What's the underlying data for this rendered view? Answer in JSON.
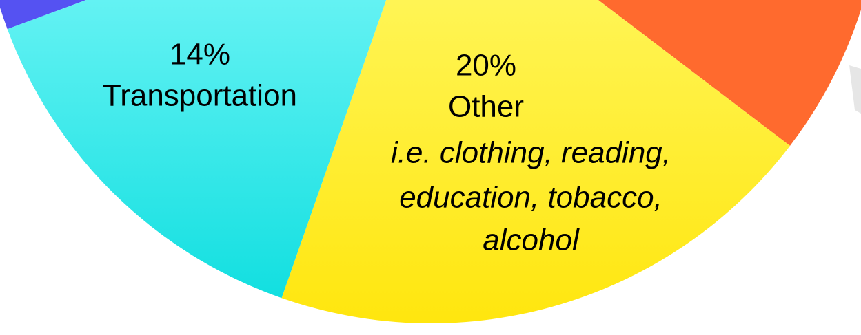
{
  "chart_data": {
    "type": "pie",
    "categories": [
      "Transportation",
      "Other"
    ],
    "values": [
      14,
      20
    ],
    "value_labels": [
      "14%",
      "20%"
    ],
    "colors": [
      "#40eaee",
      "#fff23a"
    ],
    "annotation": [
      "i.e. clothing, reading,",
      "education, tobacco,",
      "alcohol"
    ]
  }
}
